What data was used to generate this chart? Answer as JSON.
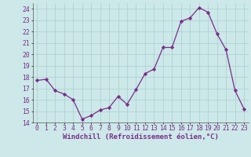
{
  "x": [
    0,
    1,
    2,
    3,
    4,
    5,
    6,
    7,
    8,
    9,
    10,
    11,
    12,
    13,
    14,
    15,
    16,
    17,
    18,
    19,
    20,
    21,
    22,
    23
  ],
  "y": [
    17.7,
    17.8,
    16.8,
    16.5,
    16.0,
    14.3,
    14.6,
    15.1,
    15.3,
    16.3,
    15.6,
    16.9,
    18.3,
    18.7,
    20.6,
    20.6,
    22.9,
    23.2,
    24.1,
    23.7,
    21.8,
    20.4,
    16.8,
    15.2
  ],
  "line_color": "#7b2d8b",
  "marker": "D",
  "marker_size": 2.2,
  "line_width": 0.9,
  "background_color": "#cce8e8",
  "grid_color": "#aacfcf",
  "xlabel": "Windchill (Refroidissement éolien,°C)",
  "xlabel_fontsize": 6.5,
  "tick_fontsize": 5.8,
  "ylim": [
    14,
    24.5
  ],
  "xlim": [
    -0.5,
    23.5
  ],
  "yticks": [
    14,
    15,
    16,
    17,
    18,
    19,
    20,
    21,
    22,
    23,
    24
  ],
  "xticks": [
    0,
    1,
    2,
    3,
    4,
    5,
    6,
    7,
    8,
    9,
    10,
    11,
    12,
    13,
    14,
    15,
    16,
    17,
    18,
    19,
    20,
    21,
    22,
    23
  ]
}
